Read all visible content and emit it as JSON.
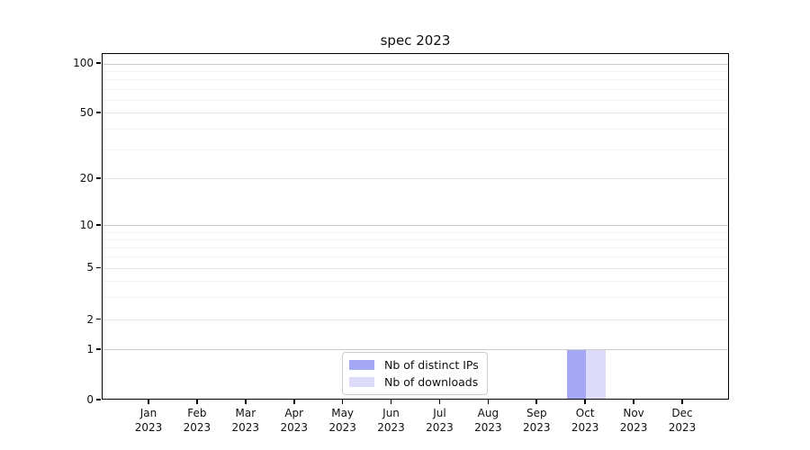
{
  "chart_data": {
    "type": "bar",
    "title": "spec 2023",
    "categories": [
      "Jan 2023",
      "Feb 2023",
      "Mar 2023",
      "Apr 2023",
      "May 2023",
      "Jun 2023",
      "Jul 2023",
      "Aug 2023",
      "Sep 2023",
      "Oct 2023",
      "Nov 2023",
      "Dec 2023"
    ],
    "series": [
      {
        "name": "Nb of distinct IPs",
        "color": "#a5a8f7",
        "values": [
          0,
          0,
          0,
          0,
          0,
          0,
          0,
          0,
          0,
          1,
          0,
          0
        ]
      },
      {
        "name": "Nb of downloads",
        "color": "#dcdcfa",
        "values": [
          0,
          0,
          0,
          0,
          0,
          0,
          0,
          0,
          0,
          1,
          0,
          0
        ]
      }
    ],
    "xlabel": "",
    "ylabel": "",
    "yscale": "symlog",
    "yticks": [
      0,
      1,
      2,
      5,
      10,
      20,
      50,
      100
    ],
    "ylim": [
      0,
      115
    ],
    "grid": "horizontal major and log-minor gridlines",
    "legend_position": "lower center",
    "bar_layout": "two bars side by side per category, width 0.4 of slot"
  }
}
